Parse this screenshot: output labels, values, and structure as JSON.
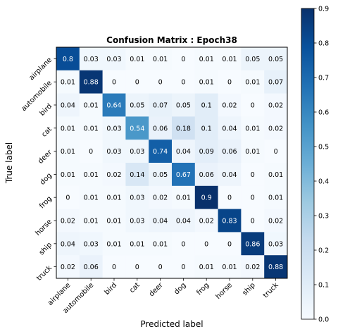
{
  "chart_data": {
    "type": "heatmap",
    "title": "Confusion Matrix : Epoch38",
    "xlabel": "Predicted label",
    "ylabel": "True label",
    "x_categories": [
      "airplane",
      "automobile",
      "bird",
      "cat",
      "deer",
      "dog",
      "frog",
      "horse",
      "ship",
      "truck"
    ],
    "y_categories": [
      "airplane",
      "automobile",
      "bird",
      "cat",
      "deer",
      "dog",
      "frog",
      "horse",
      "ship",
      "truck"
    ],
    "values": [
      [
        0.8,
        0.03,
        0.03,
        0.01,
        0.01,
        0.0,
        0.01,
        0.01,
        0.05,
        0.05
      ],
      [
        0.01,
        0.88,
        0.0,
        0.0,
        0.0,
        0.0,
        0.01,
        0.0,
        0.01,
        0.07
      ],
      [
        0.04,
        0.01,
        0.64,
        0.05,
        0.07,
        0.05,
        0.1,
        0.02,
        0.0,
        0.02
      ],
      [
        0.01,
        0.01,
        0.03,
        0.54,
        0.06,
        0.18,
        0.1,
        0.04,
        0.01,
        0.02
      ],
      [
        0.01,
        0.0,
        0.03,
        0.03,
        0.74,
        0.04,
        0.09,
        0.06,
        0.01,
        0.0
      ],
      [
        0.01,
        0.01,
        0.02,
        0.14,
        0.05,
        0.67,
        0.06,
        0.04,
        0.0,
        0.01
      ],
      [
        0.0,
        0.01,
        0.01,
        0.03,
        0.02,
        0.01,
        0.9,
        0.0,
        0.0,
        0.01
      ],
      [
        0.02,
        0.01,
        0.01,
        0.03,
        0.04,
        0.04,
        0.02,
        0.83,
        0.0,
        0.02
      ],
      [
        0.04,
        0.03,
        0.01,
        0.01,
        0.01,
        0.0,
        0.0,
        0.0,
        0.86,
        0.03
      ],
      [
        0.02,
        0.06,
        0.0,
        0.0,
        0.0,
        0.0,
        0.01,
        0.01,
        0.02,
        0.88
      ]
    ],
    "colorbar": {
      "range": [
        0.0,
        0.9
      ],
      "ticks": [
        "0.0",
        "0.1",
        "0.2",
        "0.3",
        "0.4",
        "0.5",
        "0.6",
        "0.7",
        "0.8",
        "0.9"
      ],
      "colormap": "Blues"
    },
    "grid": false,
    "text_threshold": 0.45,
    "colors": {
      "light_text": "#ffffff",
      "dark_text": "#000000",
      "scale": [
        "#f7fbff",
        "#deebf7",
        "#c6dbef",
        "#9ecae1",
        "#6baed6",
        "#4292c6",
        "#2171b5",
        "#08519c",
        "#08306b"
      ]
    }
  }
}
